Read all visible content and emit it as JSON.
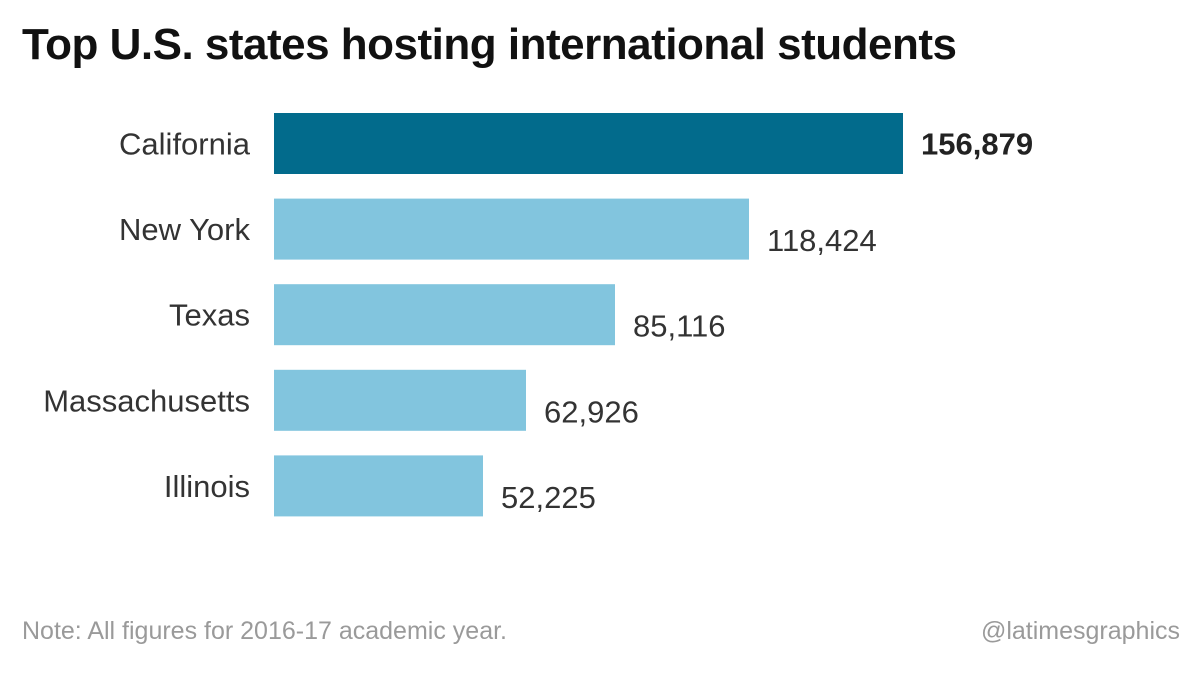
{
  "colors": {
    "highlight_bar": "#026b8c",
    "default_bar": "#82c5de",
    "text": "#333333",
    "footer_text": "#9a9a9a"
  },
  "footer": {
    "note": "Note: All figures for 2016-17 academic year.",
    "credit": "@latimesgraphics"
  },
  "chart_data": {
    "type": "bar",
    "orientation": "horizontal",
    "title": "Top U.S. states hosting international students",
    "categories": [
      "California",
      "New York",
      "Texas",
      "Massachusetts",
      "Illinois"
    ],
    "values": [
      156879,
      118424,
      85116,
      62926,
      52225
    ],
    "value_labels": [
      "156,879",
      "118,424",
      "85,116",
      "62,926",
      "52,225"
    ],
    "highlighted_index": 0,
    "xlabel": "",
    "ylabel": "",
    "xlim": [
      0,
      156879
    ],
    "grid": false,
    "legend": "none"
  }
}
